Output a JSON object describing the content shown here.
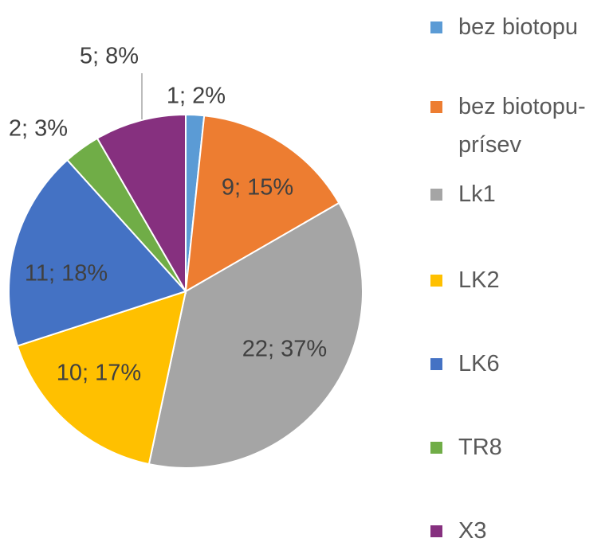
{
  "chart_data": {
    "type": "pie",
    "categories": [
      "bez biotopu",
      "bez biotopu-prísev",
      "Lk1",
      "LK2",
      "LK6",
      "TR8",
      "X3"
    ],
    "values": [
      1,
      9,
      22,
      10,
      11,
      2,
      5
    ],
    "value_labels": [
      "1; 2%",
      "9; 15%",
      "22; 37%",
      "10; 17%",
      "11; 18%",
      "2; 3%",
      "5; 8%"
    ],
    "colors": [
      "#5b9bd5",
      "#ed7d31",
      "#a5a5a5",
      "#ffc000",
      "#4472c4",
      "#70ad47",
      "#86307f"
    ],
    "legend": "right"
  }
}
